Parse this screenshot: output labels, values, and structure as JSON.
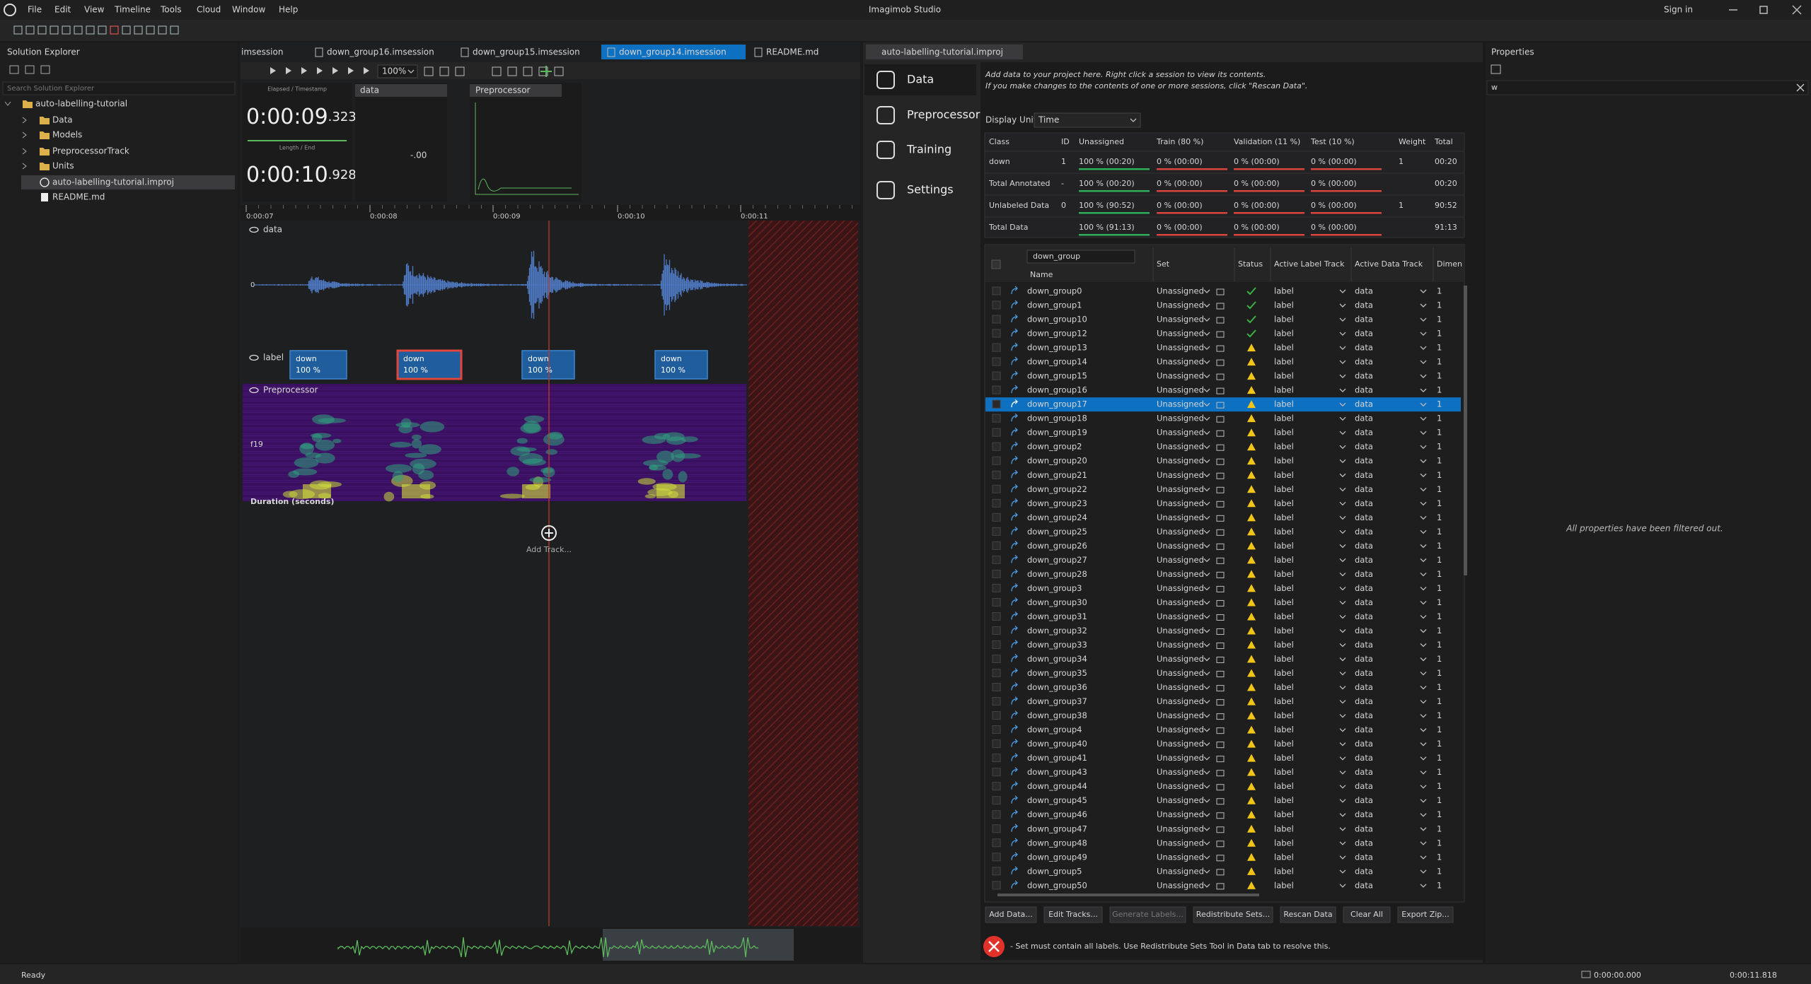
{
  "app": {
    "title": "Imagimob Studio",
    "menu": [
      "File",
      "Edit",
      "View",
      "Timeline",
      "Tools",
      "Cloud",
      "Window",
      "Help"
    ],
    "sign_in": "Sign in"
  },
  "solution_explorer": {
    "title": "Solution Explorer",
    "search": "Search Solution Explorer",
    "tree": [
      {
        "label": "auto-labelling-tutorial",
        "level": 0,
        "icon": "folder"
      },
      {
        "label": "Data",
        "level": 1,
        "icon": "folder"
      },
      {
        "label": "Models",
        "level": 1,
        "icon": "folder"
      },
      {
        "label": "PreprocessorTrack",
        "level": 1,
        "icon": "folder"
      },
      {
        "label": "Units",
        "level": 1,
        "icon": "folder"
      },
      {
        "label": "auto-labelling-tutorial.improj",
        "level": 1,
        "icon": "project",
        "selected": true
      },
      {
        "label": "README.md",
        "level": 1,
        "icon": "file"
      }
    ]
  },
  "editor_tabs": [
    {
      "label": "imsession"
    },
    {
      "label": "down_group16.imsession"
    },
    {
      "label": "down_group15.imsession"
    },
    {
      "label": "down_group14.imsession",
      "active": true
    },
    {
      "label": "README.md"
    }
  ],
  "session": {
    "zoom": "100%",
    "elapsed_label": "Elapsed / Timestamp",
    "elapsed": "0:00:09",
    "elapsed_ms": ".323",
    "length_label": "Length / End",
    "length": "0:00:10",
    "length_ms": ".928",
    "data_panel": "data",
    "data_value": "-.00",
    "preprocessor_panel": "Preprocessor",
    "timeline_ticks": [
      "0:00:07",
      "0:00:08",
      "0:00:09",
      "0:00:10",
      "0:00:11"
    ],
    "tracks": {
      "data": "data",
      "zero": "0",
      "label": "label",
      "preprocessor": "Preprocessor",
      "feature": "f19",
      "duration": "Duration (seconds)"
    },
    "labels": [
      {
        "name": "down",
        "confidence": "100 %"
      },
      {
        "name": "down",
        "confidence": "100 %",
        "selected": true
      },
      {
        "name": "down",
        "confidence": "100 %"
      },
      {
        "name": "down",
        "confidence": "100 %"
      }
    ],
    "add_track": "Add Track..."
  },
  "project": {
    "tab": "auto-labelling-tutorial.improj",
    "nav": [
      {
        "label": "Data",
        "active": true
      },
      {
        "label": "Preprocessor"
      },
      {
        "label": "Training"
      },
      {
        "label": "Settings"
      }
    ],
    "intro": [
      "Add data to your project here. Right click a session to view its contents.",
      "If you make changes to the contents of one or more sessions, click \"Rescan Data\"."
    ],
    "display_unit_label": "Display Unit",
    "display_unit": "Time",
    "summary": {
      "headers": [
        "Class",
        "ID",
        "Unassigned",
        "Train (80 %)",
        "Validation (11 %)",
        "Test (10 %)",
        "Weight",
        "Total"
      ],
      "rows": [
        [
          "down",
          "1",
          "100 %  (00:20)",
          "0 %  (00:00)",
          "0 %  (00:00)",
          "0 %  (00:00)",
          "1",
          "00:20"
        ],
        [
          "Total Annotated",
          "-",
          "100 %  (00:20)",
          "0 %  (00:00)",
          "0 %  (00:00)",
          "0 %  (00:00)",
          null,
          "00:20"
        ],
        [
          "Unlabeled Data",
          "0",
          "100 %  (90:52)",
          "0 %  (00:00)",
          "0 %  (00:00)",
          "0 %  (00:00)",
          "1",
          "90:52"
        ],
        [
          "Total Data",
          null,
          "100 %  (91:13)",
          "0 %  (00:00)",
          "0 %  (00:00)",
          "0 %  (00:00)",
          null,
          "91:13"
        ]
      ]
    },
    "filter": "down_group",
    "list_headers": [
      "Name",
      "Set",
      "Status",
      "Active Label Track",
      "Active Data Track",
      "Dimen"
    ],
    "sessions": [
      {
        "name": "down_group0",
        "set": "Unassigned",
        "status": "ok",
        "label_track": "label",
        "data_track": "data",
        "dim": "1"
      },
      {
        "name": "down_group1",
        "set": "Unassigned",
        "status": "ok",
        "label_track": "label",
        "data_track": "data",
        "dim": "1"
      },
      {
        "name": "down_group10",
        "set": "Unassigned",
        "status": "ok",
        "label_track": "label",
        "data_track": "data",
        "dim": "1"
      },
      {
        "name": "down_group12",
        "set": "Unassigned",
        "status": "ok",
        "label_track": "label",
        "data_track": "data",
        "dim": "1"
      },
      {
        "name": "down_group13",
        "set": "Unassigned",
        "status": "warn",
        "label_track": "label",
        "data_track": "data",
        "dim": "1"
      },
      {
        "name": "down_group14",
        "set": "Unassigned",
        "status": "warn",
        "label_track": "label",
        "data_track": "data",
        "dim": "1"
      },
      {
        "name": "down_group15",
        "set": "Unassigned",
        "status": "warn",
        "label_track": "label",
        "data_track": "data",
        "dim": "1"
      },
      {
        "name": "down_group16",
        "set": "Unassigned",
        "status": "warn",
        "label_track": "label",
        "data_track": "data",
        "dim": "1"
      },
      {
        "name": "down_group17",
        "set": "Unassigned",
        "status": "warn",
        "label_track": "label",
        "data_track": "data",
        "dim": "1",
        "selected": true
      },
      {
        "name": "down_group18",
        "set": "Unassigned",
        "status": "warn",
        "label_track": "label",
        "data_track": "data",
        "dim": "1"
      },
      {
        "name": "down_group19",
        "set": "Unassigned",
        "status": "warn",
        "label_track": "label",
        "data_track": "data",
        "dim": "1"
      },
      {
        "name": "down_group2",
        "set": "Unassigned",
        "status": "warn",
        "label_track": "label",
        "data_track": "data",
        "dim": "1"
      },
      {
        "name": "down_group20",
        "set": "Unassigned",
        "status": "warn",
        "label_track": "label",
        "data_track": "data",
        "dim": "1"
      },
      {
        "name": "down_group21",
        "set": "Unassigned",
        "status": "warn",
        "label_track": "label",
        "data_track": "data",
        "dim": "1"
      },
      {
        "name": "down_group22",
        "set": "Unassigned",
        "status": "warn",
        "label_track": "label",
        "data_track": "data",
        "dim": "1"
      },
      {
        "name": "down_group23",
        "set": "Unassigned",
        "status": "warn",
        "label_track": "label",
        "data_track": "data",
        "dim": "1"
      },
      {
        "name": "down_group24",
        "set": "Unassigned",
        "status": "warn",
        "label_track": "label",
        "data_track": "data",
        "dim": "1"
      },
      {
        "name": "down_group25",
        "set": "Unassigned",
        "status": "warn",
        "label_track": "label",
        "data_track": "data",
        "dim": "1"
      },
      {
        "name": "down_group26",
        "set": "Unassigned",
        "status": "warn",
        "label_track": "label",
        "data_track": "data",
        "dim": "1"
      },
      {
        "name": "down_group27",
        "set": "Unassigned",
        "status": "warn",
        "label_track": "label",
        "data_track": "data",
        "dim": "1"
      },
      {
        "name": "down_group28",
        "set": "Unassigned",
        "status": "warn",
        "label_track": "label",
        "data_track": "data",
        "dim": "1"
      },
      {
        "name": "down_group3",
        "set": "Unassigned",
        "status": "warn",
        "label_track": "label",
        "data_track": "data",
        "dim": "1"
      },
      {
        "name": "down_group30",
        "set": "Unassigned",
        "status": "warn",
        "label_track": "label",
        "data_track": "data",
        "dim": "1"
      },
      {
        "name": "down_group31",
        "set": "Unassigned",
        "status": "warn",
        "label_track": "label",
        "data_track": "data",
        "dim": "1"
      },
      {
        "name": "down_group32",
        "set": "Unassigned",
        "status": "warn",
        "label_track": "label",
        "data_track": "data",
        "dim": "1"
      },
      {
        "name": "down_group33",
        "set": "Unassigned",
        "status": "warn",
        "label_track": "label",
        "data_track": "data",
        "dim": "1"
      },
      {
        "name": "down_group34",
        "set": "Unassigned",
        "status": "warn",
        "label_track": "label",
        "data_track": "data",
        "dim": "1"
      },
      {
        "name": "down_group35",
        "set": "Unassigned",
        "status": "warn",
        "label_track": "label",
        "data_track": "data",
        "dim": "1"
      },
      {
        "name": "down_group36",
        "set": "Unassigned",
        "status": "warn",
        "label_track": "label",
        "data_track": "data",
        "dim": "1"
      },
      {
        "name": "down_group37",
        "set": "Unassigned",
        "status": "warn",
        "label_track": "label",
        "data_track": "data",
        "dim": "1"
      },
      {
        "name": "down_group38",
        "set": "Unassigned",
        "status": "warn",
        "label_track": "label",
        "data_track": "data",
        "dim": "1"
      },
      {
        "name": "down_group4",
        "set": "Unassigned",
        "status": "warn",
        "label_track": "label",
        "data_track": "data",
        "dim": "1"
      },
      {
        "name": "down_group40",
        "set": "Unassigned",
        "status": "warn",
        "label_track": "label",
        "data_track": "data",
        "dim": "1"
      },
      {
        "name": "down_group41",
        "set": "Unassigned",
        "status": "warn",
        "label_track": "label",
        "data_track": "data",
        "dim": "1"
      },
      {
        "name": "down_group43",
        "set": "Unassigned",
        "status": "warn",
        "label_track": "label",
        "data_track": "data",
        "dim": "1"
      },
      {
        "name": "down_group44",
        "set": "Unassigned",
        "status": "warn",
        "label_track": "label",
        "data_track": "data",
        "dim": "1"
      },
      {
        "name": "down_group45",
        "set": "Unassigned",
        "status": "warn",
        "label_track": "label",
        "data_track": "data",
        "dim": "1"
      },
      {
        "name": "down_group46",
        "set": "Unassigned",
        "status": "warn",
        "label_track": "label",
        "data_track": "data",
        "dim": "1"
      },
      {
        "name": "down_group47",
        "set": "Unassigned",
        "status": "warn",
        "label_track": "label",
        "data_track": "data",
        "dim": "1"
      },
      {
        "name": "down_group48",
        "set": "Unassigned",
        "status": "warn",
        "label_track": "label",
        "data_track": "data",
        "dim": "1"
      },
      {
        "name": "down_group49",
        "set": "Unassigned",
        "status": "warn",
        "label_track": "label",
        "data_track": "data",
        "dim": "1"
      },
      {
        "name": "down_group5",
        "set": "Unassigned",
        "status": "warn",
        "label_track": "label",
        "data_track": "data",
        "dim": "1"
      },
      {
        "name": "down_group50",
        "set": "Unassigned",
        "status": "warn",
        "label_track": "label",
        "data_track": "data",
        "dim": "1"
      }
    ],
    "buttons": [
      {
        "label": "Add Data..."
      },
      {
        "label": "Edit Tracks..."
      },
      {
        "label": "Generate Labels...",
        "disabled": true
      },
      {
        "label": "Redistribute Sets..."
      },
      {
        "label": "Rescan Data"
      },
      {
        "label": "Clear All"
      },
      {
        "label": "Export Zip..."
      }
    ],
    "error": "- Set must contain all labels. Use Redistribute Sets Tool in Data tab to resolve this."
  },
  "properties": {
    "title": "Properties",
    "filter": "w",
    "empty": "All properties have been filtered out."
  },
  "status_bar": {
    "ready": "Ready",
    "position": "0:00:00.000",
    "end": "0:00:11.818"
  }
}
